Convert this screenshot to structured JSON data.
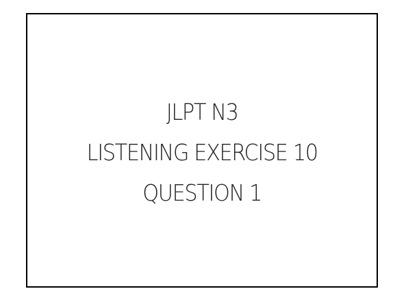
{
  "slide": {
    "lines": [
      "JLPT N3",
      "LISTENING EXERCISE 10",
      "QUESTION 1"
    ]
  }
}
